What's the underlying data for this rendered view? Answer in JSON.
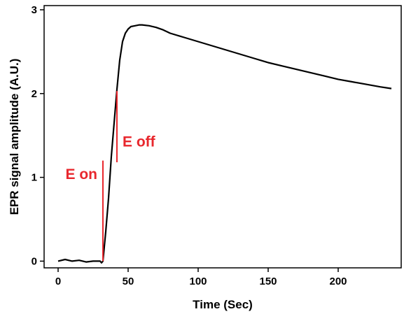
{
  "chart_data": {
    "type": "line",
    "title": "",
    "xlabel": "Time (Sec)",
    "ylabel": "EPR signal amplitude (A.U.)",
    "xlim": [
      -10,
      245
    ],
    "ylim": [
      -0.08,
      3.05
    ],
    "x_ticks": [
      0,
      50,
      100,
      150,
      200
    ],
    "y_ticks": [
      0,
      1,
      2,
      3
    ],
    "grid": false,
    "legend": "none",
    "colors": {
      "line": "#000000",
      "annotation": "#e8272d"
    },
    "series": [
      {
        "x": [
          0,
          5,
          10,
          15,
          20,
          25,
          30,
          31,
          32,
          34,
          36,
          38,
          40,
          42,
          44,
          46,
          48,
          50,
          52,
          55,
          58,
          60,
          65,
          70,
          75,
          80,
          90,
          100,
          110,
          120,
          130,
          140,
          150,
          160,
          170,
          180,
          190,
          200,
          210,
          220,
          230,
          238
        ],
        "y": [
          0.0,
          0.02,
          0.0,
          0.01,
          -0.01,
          0.0,
          0.0,
          -0.02,
          0.0,
          0.35,
          0.75,
          1.25,
          1.65,
          2.05,
          2.4,
          2.62,
          2.72,
          2.77,
          2.8,
          2.81,
          2.82,
          2.82,
          2.81,
          2.79,
          2.76,
          2.72,
          2.67,
          2.62,
          2.57,
          2.52,
          2.47,
          2.42,
          2.37,
          2.33,
          2.29,
          2.25,
          2.21,
          2.17,
          2.14,
          2.11,
          2.08,
          2.06
        ]
      }
    ],
    "annotations": [
      {
        "text": "E on",
        "x": 32,
        "y_range": [
          0.0,
          1.2
        ]
      },
      {
        "text": "E off",
        "x": 42,
        "y_range": [
          1.18,
          2.03
        ]
      }
    ]
  }
}
